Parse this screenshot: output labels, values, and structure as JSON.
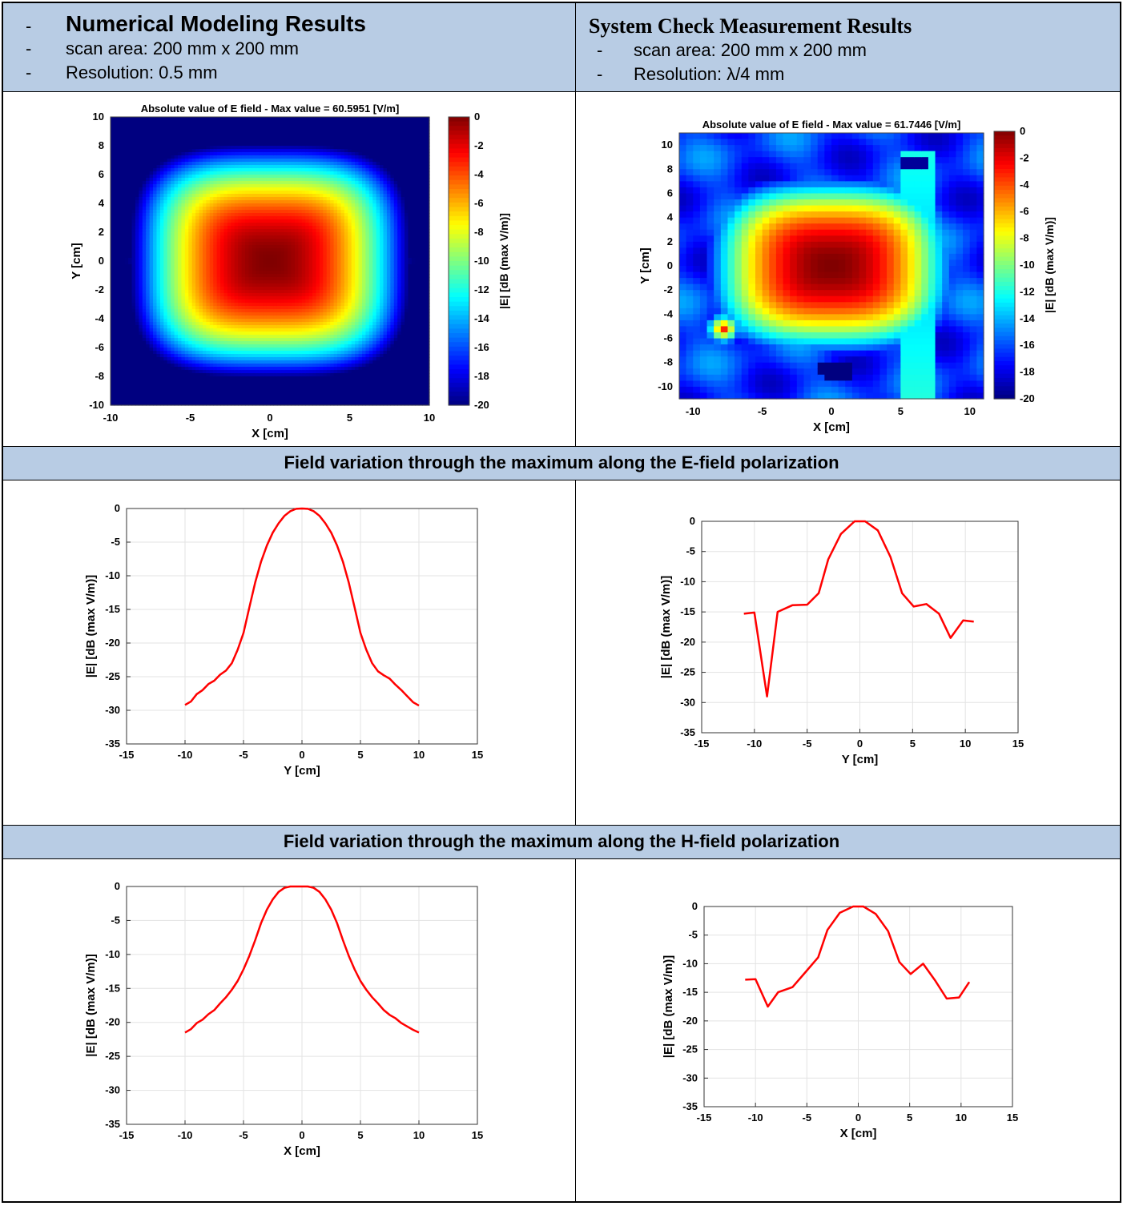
{
  "header": {
    "left": {
      "title": "Numerical Modeling Results",
      "lines": [
        "scan area: 200 mm x 200 mm",
        "Resolution: 0.5 mm"
      ]
    },
    "right": {
      "title": "System Check Measurement Results",
      "lines": [
        "scan area: 200 mm x 200 mm",
        "Resolution: λ/4 mm"
      ]
    },
    "bullet": "-"
  },
  "banners": {
    "e_field": "Field variation through the maximum along the E-field polarization",
    "h_field": "Field variation through the maximum along the H-field polarization"
  },
  "colors": {
    "header_bg": "#b8cce4",
    "curve": "#ff0000"
  },
  "chart_data": [
    {
      "id": "sim-map",
      "type": "heatmap",
      "title": "Absolute value of E field - Max value = 60.5951 [V/m]",
      "xlabel": "X [cm]",
      "ylabel": "Y [cm]",
      "colorbar_label": "|E| [dB (max V/m)]",
      "xlim": [
        -10,
        10
      ],
      "ylim": [
        -10,
        10
      ],
      "clim": [
        -20,
        0
      ],
      "xticks": [
        -10,
        -5,
        0,
        5,
        10
      ],
      "yticks": [
        -10,
        -8,
        -6,
        -4,
        -2,
        0,
        2,
        4,
        6,
        8,
        10
      ],
      "cticks": [
        0,
        -2,
        -4,
        -6,
        -8,
        -10,
        -12,
        -14,
        -16,
        -18,
        -20
      ],
      "max_value": 60.5951
    },
    {
      "id": "meas-map",
      "type": "heatmap",
      "title": "Absolute value of E field - Max value = 61.7446 [V/m]",
      "xlabel": "X [cm]",
      "ylabel": "Y [cm]",
      "colorbar_label": "|E| [dB (max V/m)]",
      "xlim": [
        -11,
        11
      ],
      "ylim": [
        -11,
        11
      ],
      "clim": [
        -20,
        0
      ],
      "xticks": [
        -10,
        -5,
        0,
        5,
        10
      ],
      "yticks": [
        -10,
        -8,
        -6,
        -4,
        -2,
        0,
        2,
        4,
        6,
        8,
        10
      ],
      "cticks": [
        0,
        -2,
        -4,
        -6,
        -8,
        -10,
        -12,
        -14,
        -16,
        -18,
        -20
      ],
      "max_value": 61.7446
    },
    {
      "id": "sim-e",
      "type": "line",
      "xlabel": "Y [cm]",
      "ylabel": "|E| [dB (max V/m)]",
      "xlim": [
        -15,
        15
      ],
      "ylim": [
        -35,
        0
      ],
      "grid": true,
      "xticks": [
        -15,
        -10,
        -5,
        0,
        5,
        10,
        15
      ],
      "yticks": [
        0,
        -5,
        -10,
        -15,
        -20,
        -25,
        -30,
        -35
      ],
      "x": [
        -10,
        -9.5,
        -9,
        -8.5,
        -8,
        -7.5,
        -7,
        -6.5,
        -6,
        -5.5,
        -5,
        -4.5,
        -4,
        -3.5,
        -3,
        -2.5,
        -2,
        -1.5,
        -1,
        -0.5,
        0,
        0.5,
        1,
        1.5,
        2,
        2.5,
        3,
        3.5,
        4,
        4.5,
        5,
        5.5,
        6,
        6.5,
        7,
        7.5,
        8,
        8.5,
        9,
        9.5,
        10
      ],
      "y": [
        -29.2,
        -28.7,
        -27.6,
        -27.0,
        -26.1,
        -25.6,
        -24.7,
        -24.1,
        -23.0,
        -21.0,
        -18.5,
        -14.7,
        -11.0,
        -7.9,
        -5.5,
        -3.6,
        -2.2,
        -1.1,
        -0.4,
        -0.05,
        0,
        -0.05,
        -0.4,
        -1.1,
        -2.2,
        -3.6,
        -5.5,
        -7.9,
        -11.0,
        -14.7,
        -18.5,
        -21.0,
        -23.0,
        -24.2,
        -24.8,
        -25.3,
        -26.2,
        -27.0,
        -27.9,
        -28.8,
        -29.3
      ]
    },
    {
      "id": "meas-e",
      "type": "line",
      "xlabel": "Y [cm]",
      "ylabel": "|E| [dB (max V/m)]",
      "xlim": [
        -15,
        15
      ],
      "ylim": [
        -35,
        0
      ],
      "grid": true,
      "xticks": [
        -15,
        -10,
        -5,
        0,
        5,
        10,
        15
      ],
      "yticks": [
        0,
        -5,
        -10,
        -15,
        -20,
        -25,
        -30,
        -35
      ],
      "x": [
        -11,
        -10,
        -8.8,
        -7.8,
        -6.4,
        -5.0,
        -3.9,
        -3.0,
        -1.8,
        -0.5,
        0.5,
        1.7,
        2.9,
        4.0,
        5.1,
        6.3,
        7.5,
        8.6,
        9.8,
        10.8
      ],
      "y": [
        -15.3,
        -15.1,
        -29.0,
        -15.0,
        -13.9,
        -13.8,
        -11.9,
        -6.3,
        -2.1,
        0,
        0,
        -1.5,
        -5.9,
        -11.9,
        -14.1,
        -13.7,
        -15.3,
        -19.3,
        -16.4,
        -16.6
      ]
    },
    {
      "id": "sim-h",
      "type": "line",
      "xlabel": "X [cm]",
      "ylabel": "|E| [dB (max V/m)]",
      "xlim": [
        -15,
        15
      ],
      "ylim": [
        -35,
        0
      ],
      "grid": true,
      "xticks": [
        -15,
        -10,
        -5,
        0,
        5,
        10,
        15
      ],
      "yticks": [
        0,
        -5,
        -10,
        -15,
        -20,
        -25,
        -30,
        -35
      ],
      "x": [
        -10,
        -9.5,
        -9,
        -8.5,
        -8,
        -7.5,
        -7,
        -6.5,
        -6,
        -5.5,
        -5,
        -4.5,
        -4,
        -3.5,
        -3,
        -2.5,
        -2,
        -1.5,
        -1,
        -0.5,
        0,
        0.5,
        1,
        1.5,
        2,
        2.5,
        3,
        3.5,
        4,
        4.5,
        5,
        5.5,
        6,
        6.5,
        7,
        7.5,
        8,
        8.5,
        9,
        9.5,
        10
      ],
      "y": [
        -21.5,
        -21.0,
        -20.1,
        -19.6,
        -18.8,
        -18.2,
        -17.2,
        -16.3,
        -15.2,
        -13.9,
        -12.2,
        -10.2,
        -7.9,
        -5.4,
        -3.4,
        -1.9,
        -0.8,
        -0.2,
        0,
        0,
        0,
        0,
        -0.2,
        -0.8,
        -1.9,
        -3.4,
        -5.4,
        -7.9,
        -10.2,
        -12.2,
        -13.9,
        -15.2,
        -16.3,
        -17.2,
        -18.2,
        -18.9,
        -19.4,
        -20.1,
        -20.6,
        -21.1,
        -21.5
      ]
    },
    {
      "id": "meas-h",
      "type": "line",
      "xlabel": "X [cm]",
      "ylabel": "|E| [dB (max V/m)]",
      "xlim": [
        -15,
        15
      ],
      "ylim": [
        -35,
        0
      ],
      "grid": true,
      "xticks": [
        -15,
        -10,
        -5,
        0,
        5,
        10,
        15
      ],
      "yticks": [
        0,
        -5,
        -10,
        -15,
        -20,
        -25,
        -30,
        -35
      ],
      "x": [
        -11,
        -10,
        -8.8,
        -7.8,
        -6.4,
        -5.0,
        -3.9,
        -3.0,
        -1.8,
        -0.5,
        0.5,
        1.7,
        2.9,
        4.0,
        5.1,
        6.3,
        7.5,
        8.6,
        9.8,
        10.8
      ],
      "y": [
        -12.8,
        -12.7,
        -17.5,
        -15.0,
        -14.1,
        -11.2,
        -8.9,
        -4.1,
        -1.1,
        0,
        0,
        -1.3,
        -4.3,
        -9.7,
        -11.8,
        -10.0,
        -13.0,
        -16.1,
        -15.9,
        -13.2
      ]
    }
  ]
}
